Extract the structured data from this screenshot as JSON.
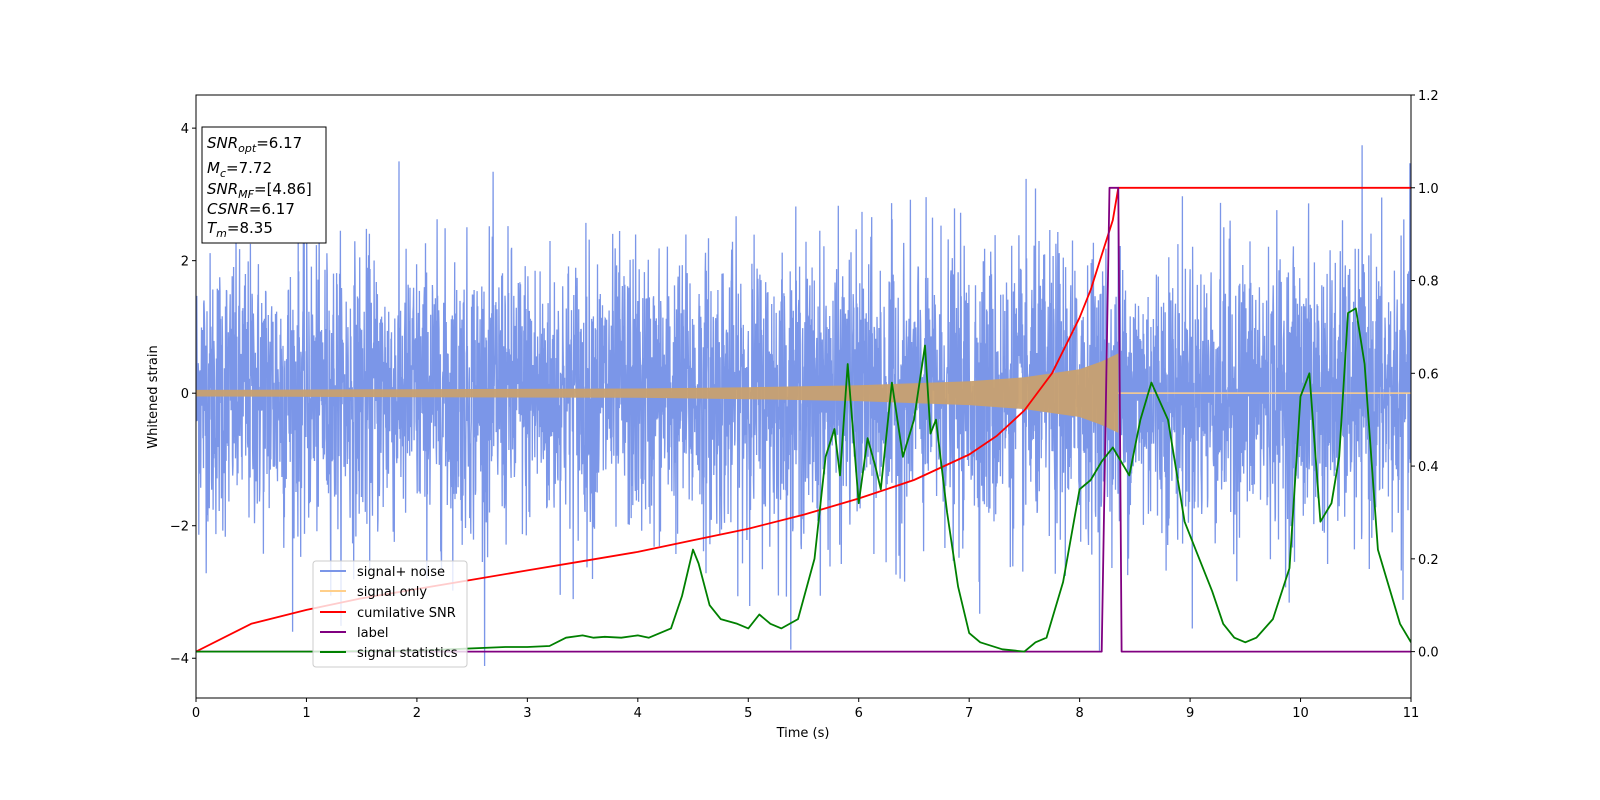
{
  "chart_data": {
    "type": "line",
    "xlabel": "Time (s)",
    "ylabel": "Whitened strain",
    "xlim": [
      0,
      11
    ],
    "ylim_left": [
      -4.6,
      4.5
    ],
    "ylim_right": [
      -0.1,
      1.2
    ],
    "x_ticks": [
      "0",
      "1",
      "2",
      "3",
      "4",
      "5",
      "6",
      "7",
      "8",
      "9",
      "10",
      "11"
    ],
    "y_ticks_left": [
      "4",
      "2",
      "0",
      "−2",
      "−4"
    ],
    "y_ticks_right": [
      "1.2",
      "1.0",
      "0.8",
      "0.6",
      "0.4",
      "0.2",
      "0.0"
    ],
    "info_box": {
      "snr_opt_base": "SNR",
      "snr_opt_sub": "opt",
      "snr_opt_value": "=6.17",
      "mc_base": "M",
      "mc_sub": "c",
      "mc_value": "=7.72",
      "snr_mf_base": "SNR",
      "snr_mf_sub": "MF",
      "snr_mf_value": "=[4.86]",
      "csnr_base": "CSNR",
      "csnr_value": "=6.17",
      "tm_base": "T",
      "tm_sub": "m",
      "tm_value": "=8.35"
    },
    "legend": {
      "placement": "lower-left-center",
      "entries": [
        {
          "label": "signal+ noise",
          "color": "#7b96e8"
        },
        {
          "label": "signal only",
          "color": "#ffcf8a"
        },
        {
          "label": "cumilative SNR",
          "color": "#ff0000"
        },
        {
          "label": "label",
          "color": "#800080"
        },
        {
          "label": "signal statistics",
          "color": "#008000"
        }
      ]
    },
    "series": [
      {
        "name": "signal+ noise",
        "axis": "left",
        "color": "#7b96e8",
        "style": "dense noise band",
        "approx_std": 1.05,
        "approx_range": [
          -4.15,
          3.9
        ],
        "chirp_end_time": 8.35
      },
      {
        "name": "signal only",
        "axis": "left",
        "color": "#c8a070",
        "style": "chirp envelope",
        "t_merge": 8.35,
        "envelope_t": [
          0,
          2,
          4,
          5,
          6,
          7,
          7.5,
          8,
          8.2,
          8.35
        ],
        "envelope_amp": [
          0.05,
          0.06,
          0.07,
          0.09,
          0.12,
          0.18,
          0.24,
          0.36,
          0.48,
          0.6
        ]
      },
      {
        "name": "cumilative SNR",
        "axis": "right",
        "color": "#ff0000",
        "x": [
          0,
          0.5,
          1,
          1.5,
          2,
          2.5,
          3,
          3.5,
          4,
          4.5,
          5,
          5.5,
          6,
          6.5,
          7,
          7.25,
          7.5,
          7.75,
          8,
          8.1,
          8.2,
          8.3,
          8.35,
          8.36,
          9,
          10,
          11
        ],
        "y": [
          0.0,
          0.06,
          0.09,
          0.115,
          0.135,
          0.155,
          0.175,
          0.195,
          0.215,
          0.24,
          0.265,
          0.295,
          0.33,
          0.37,
          0.425,
          0.465,
          0.52,
          0.6,
          0.72,
          0.78,
          0.855,
          0.93,
          1.0,
          1.0,
          1.0,
          1.0,
          1.0
        ]
      },
      {
        "name": "label",
        "axis": "right",
        "color": "#800080",
        "x": [
          0,
          8.2,
          8.27,
          8.35,
          8.38,
          11
        ],
        "y": [
          0,
          0,
          1.0,
          1.0,
          0,
          0
        ]
      },
      {
        "name": "signal statistics",
        "axis": "right",
        "color": "#008000",
        "x": [
          0,
          1,
          2,
          2.8,
          3.0,
          3.2,
          3.35,
          3.5,
          3.6,
          3.7,
          3.85,
          4.0,
          4.1,
          4.3,
          4.4,
          4.5,
          4.55,
          4.65,
          4.75,
          4.9,
          5.0,
          5.1,
          5.2,
          5.3,
          5.45,
          5.6,
          5.7,
          5.78,
          5.83,
          5.9,
          6.0,
          6.08,
          6.15,
          6.2,
          6.3,
          6.4,
          6.5,
          6.6,
          6.65,
          6.7,
          6.8,
          6.9,
          7.0,
          7.1,
          7.3,
          7.5,
          7.6,
          7.7,
          7.85,
          8.0,
          8.1,
          8.2,
          8.3,
          8.45,
          8.55,
          8.65,
          8.8,
          8.95,
          9.05,
          9.2,
          9.3,
          9.4,
          9.5,
          9.6,
          9.75,
          9.9,
          10.0,
          10.08,
          10.18,
          10.28,
          10.35,
          10.43,
          10.5,
          10.58,
          10.7,
          10.9,
          11.0
        ],
        "y": [
          0,
          0,
          0.002,
          0.01,
          0.01,
          0.012,
          0.03,
          0.035,
          0.03,
          0.032,
          0.03,
          0.035,
          0.03,
          0.05,
          0.12,
          0.22,
          0.19,
          0.1,
          0.07,
          0.06,
          0.05,
          0.08,
          0.06,
          0.05,
          0.07,
          0.2,
          0.42,
          0.48,
          0.38,
          0.62,
          0.32,
          0.46,
          0.4,
          0.35,
          0.58,
          0.42,
          0.5,
          0.66,
          0.47,
          0.5,
          0.3,
          0.14,
          0.04,
          0.02,
          0.005,
          0.0,
          0.02,
          0.03,
          0.15,
          0.35,
          0.37,
          0.41,
          0.44,
          0.38,
          0.5,
          0.58,
          0.5,
          0.28,
          0.22,
          0.13,
          0.06,
          0.03,
          0.02,
          0.03,
          0.07,
          0.18,
          0.55,
          0.6,
          0.28,
          0.32,
          0.42,
          0.73,
          0.74,
          0.62,
          0.22,
          0.06,
          0.02
        ]
      }
    ]
  }
}
